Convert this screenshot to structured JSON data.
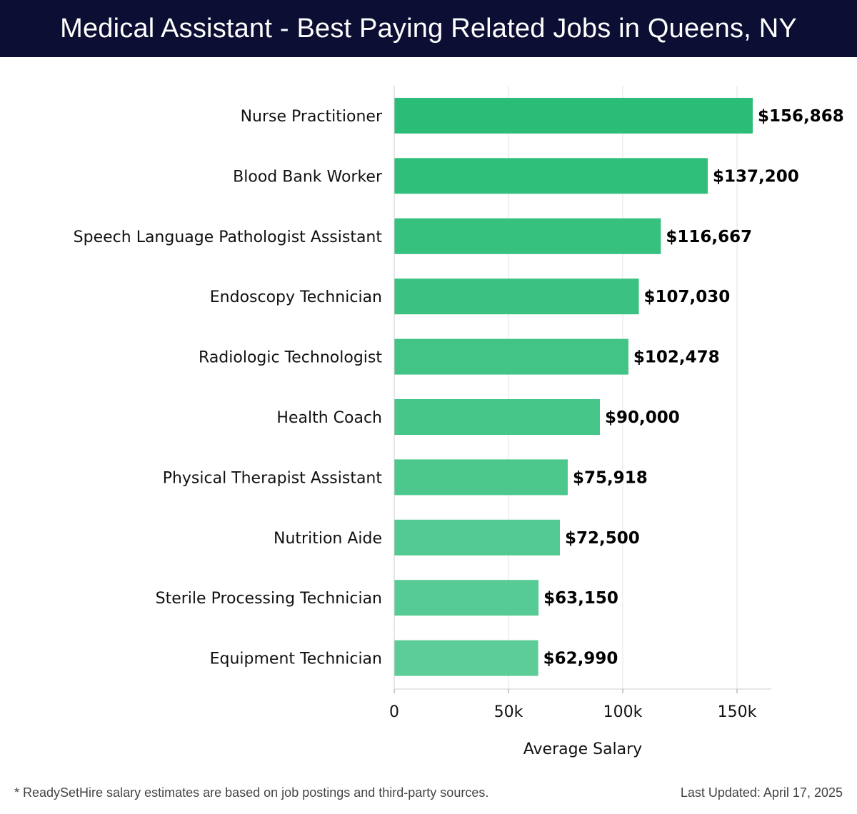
{
  "header": {
    "title": "Medical Assistant - Best Paying Related Jobs in Queens, NY"
  },
  "chart_data": {
    "type": "bar",
    "orientation": "horizontal",
    "categories": [
      "Nurse Practitioner",
      "Blood Bank Worker",
      "Speech Language Pathologist Assistant",
      "Endoscopy Technician",
      "Radiologic Technologist",
      "Health Coach",
      "Physical Therapist Assistant",
      "Nutrition Aide",
      "Sterile Processing Technician",
      "Equipment Technician"
    ],
    "values": [
      156868,
      137200,
      116667,
      107030,
      102478,
      90000,
      75918,
      72500,
      63150,
      62990
    ],
    "value_labels": [
      "$156,868",
      "$137,200",
      "$116,667",
      "$107,030",
      "$102,478",
      "$90,000",
      "$75,918",
      "$72,500",
      "$63,150",
      "$62,990"
    ],
    "xlabel": "Average Salary",
    "ylabel": "",
    "xlim": [
      0,
      165000
    ],
    "x_ticks": [
      0,
      50000,
      100000,
      150000
    ],
    "x_tick_labels": [
      "0",
      "50k",
      "100k",
      "150k"
    ],
    "grid": true,
    "bar_color_top": "#2bbd78",
    "bar_color_bottom": "#5ccd97"
  },
  "footer": {
    "note": "* ReadySetHire salary estimates are based on job postings and third-party sources.",
    "updated": "Last Updated: April 17, 2025"
  }
}
